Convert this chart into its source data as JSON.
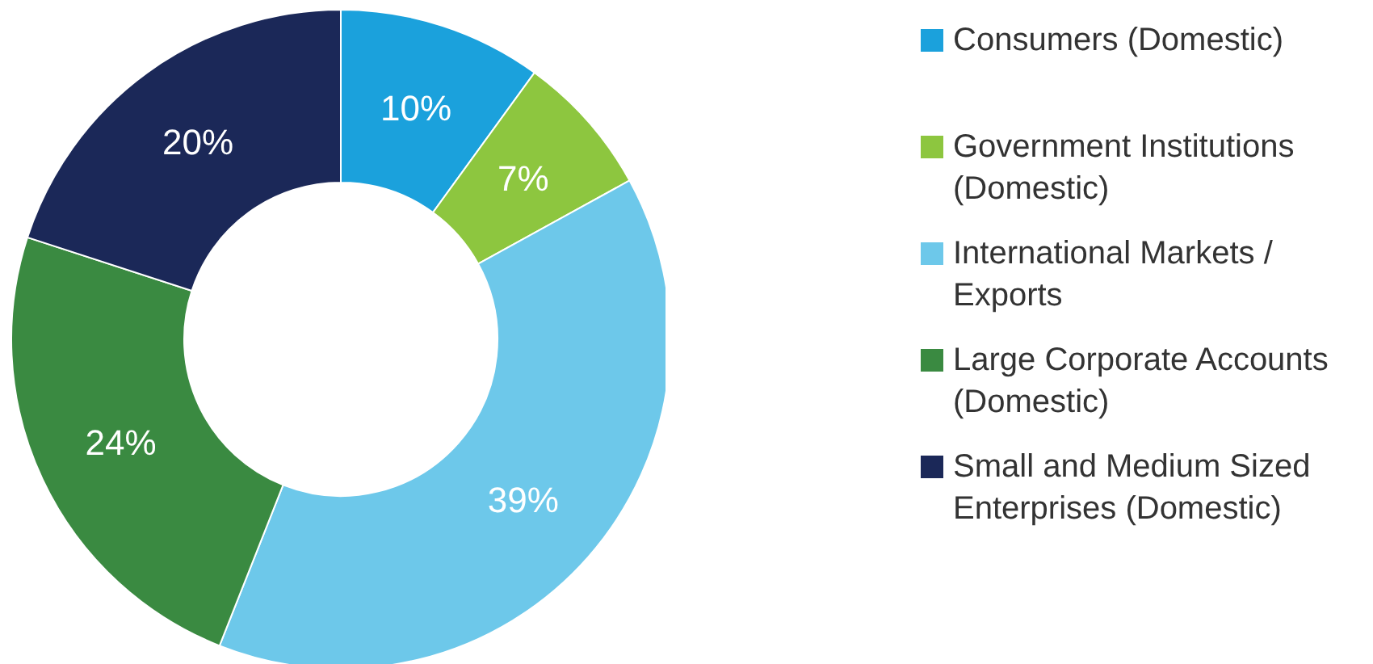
{
  "chart_data": {
    "type": "donut",
    "categories": [
      "Consumers (Domestic)",
      "Government Institutions (Domestic)",
      "International Markets / Exports",
      "Large Corporate Accounts (Domestic)",
      "Small and Medium Sized Enterprises (Domestic)"
    ],
    "values": [
      10,
      7,
      39,
      24,
      20
    ],
    "value_labels": [
      "10%",
      "7%",
      "39%",
      "24%",
      "20%"
    ],
    "colors": [
      "#1ba1dc",
      "#8dc63f",
      "#6dc8ea",
      "#3a8a41",
      "#1b2858"
    ],
    "legend": "right"
  }
}
